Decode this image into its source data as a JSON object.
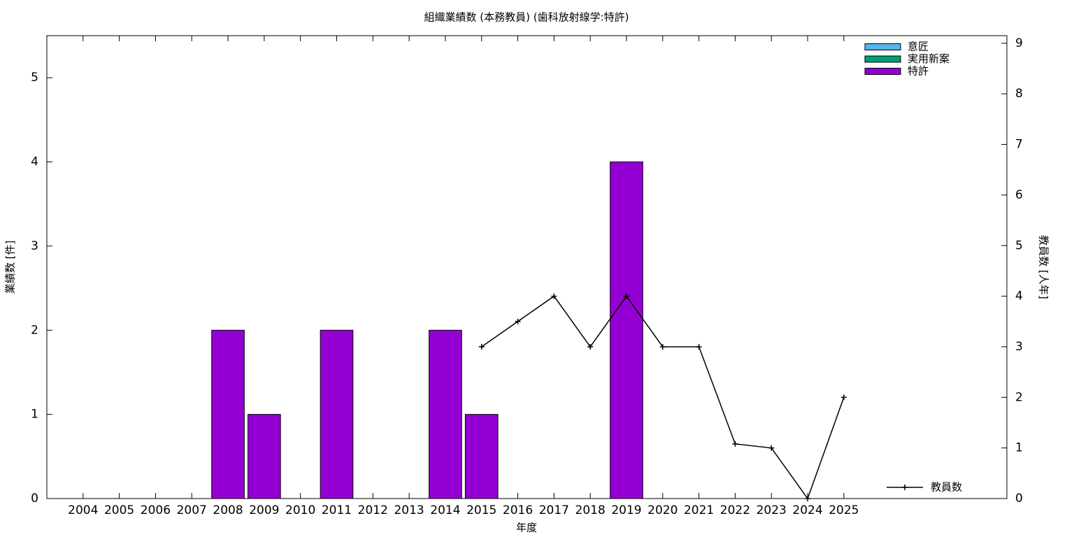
{
  "chart_data": {
    "type": "bar",
    "title": "組織業績数 (本務教員) (歯科放射線学:特許)",
    "xlabel": "年度",
    "ylabel": "業績数 [件]",
    "y2label": "教員数 [人年]",
    "x": [
      2004,
      2005,
      2006,
      2007,
      2008,
      2009,
      2010,
      2011,
      2012,
      2013,
      2014,
      2015,
      2016,
      2017,
      2018,
      2019,
      2020,
      2021,
      2022,
      2023,
      2024,
      2025
    ],
    "xlim": [
      2003,
      2029.5
    ],
    "xticks": [
      2004,
      2005,
      2006,
      2007,
      2008,
      2009,
      2010,
      2011,
      2012,
      2013,
      2014,
      2015,
      2016,
      2017,
      2018,
      2019,
      2020,
      2021,
      2022,
      2023,
      2024,
      2025
    ],
    "ylim": [
      0,
      5.5
    ],
    "yticks": [
      0,
      1,
      2,
      3,
      4,
      5
    ],
    "y2lim": [
      0,
      9.15
    ],
    "y2ticks": [
      0,
      1,
      2,
      3,
      4,
      5,
      6,
      7,
      8,
      9
    ],
    "stacked": true,
    "series": [
      {
        "name": "意匠",
        "color": "#56b4e9",
        "values": [
          0,
          0,
          0,
          0,
          0,
          0,
          0,
          0,
          0,
          0,
          0,
          0,
          0,
          0,
          0,
          0,
          0,
          0,
          0,
          0,
          0,
          0
        ]
      },
      {
        "name": "実用新案",
        "color": "#009e73",
        "values": [
          0,
          0,
          0,
          0,
          0,
          0,
          0,
          0,
          0,
          0,
          0,
          0,
          0,
          0,
          0,
          0,
          0,
          0,
          0,
          0,
          0,
          0
        ]
      },
      {
        "name": "特許",
        "color": "#9400d3",
        "values": [
          0,
          0,
          0,
          0,
          2,
          1,
          0,
          2,
          0,
          0,
          2,
          1,
          0,
          0,
          0,
          4,
          0,
          0,
          0,
          0,
          0,
          0
        ]
      },
      {
        "name": "教員数",
        "type": "line",
        "axis": "y2",
        "color": "#000000",
        "values": [
          null,
          null,
          null,
          null,
          null,
          null,
          null,
          null,
          null,
          null,
          null,
          3,
          3.5,
          4,
          3,
          4,
          3,
          3,
          1.08,
          1,
          0,
          2
        ]
      }
    ]
  }
}
